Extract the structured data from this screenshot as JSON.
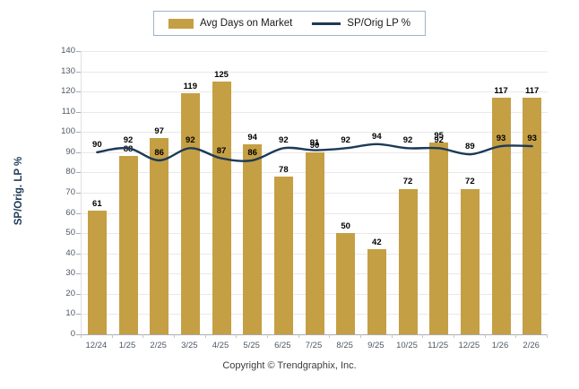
{
  "legend": {
    "items": [
      {
        "label": "Avg Days on Market",
        "swatch": "bar-swatch",
        "color": "#C59F44"
      },
      {
        "label": "SP/Orig LP %",
        "swatch": "line-swatch",
        "color": "#1C3A57"
      }
    ]
  },
  "chart_data": {
    "type": "combo-bar-line",
    "categories": [
      "12/24",
      "1/25",
      "2/25",
      "3/25",
      "4/25",
      "5/25",
      "6/25",
      "7/25",
      "8/25",
      "9/25",
      "10/25",
      "11/25",
      "12/25",
      "1/26",
      "2/26"
    ],
    "series": [
      {
        "name": "Avg Days on Market",
        "type": "bar",
        "color": "#C59F44",
        "values": [
          61,
          88,
          97,
          119,
          125,
          94,
          78,
          90,
          50,
          42,
          72,
          95,
          72,
          117,
          117
        ]
      },
      {
        "name": "SP/Orig LP %",
        "type": "line",
        "color": "#1C3A57",
        "values": [
          90,
          92,
          86,
          92,
          87,
          86,
          92,
          91,
          92,
          94,
          92,
          92,
          89,
          93,
          93
        ]
      }
    ],
    "ylabel": "SP/Orig. LP %",
    "ylim": [
      0,
      140
    ],
    "yticks": [
      0,
      10,
      20,
      30,
      40,
      50,
      60,
      70,
      80,
      90,
      100,
      110,
      120,
      130,
      140
    ],
    "grid": true,
    "legend_position": "top-center",
    "data_labels": true
  },
  "footer": {
    "copyright": "Copyright © Trendgraphix, Inc."
  }
}
